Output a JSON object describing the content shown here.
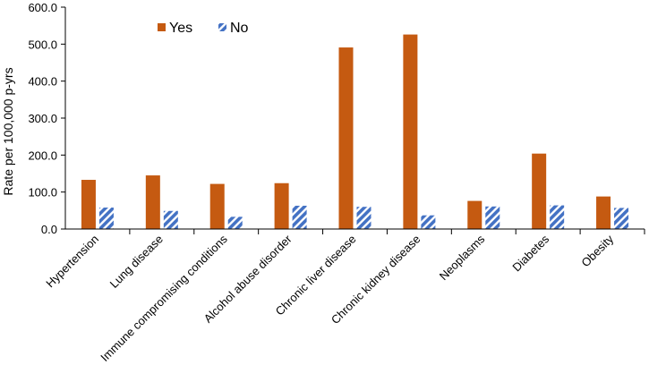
{
  "chart_data": {
    "type": "bar",
    "title": "",
    "xlabel": "",
    "ylabel": "Rate per 100,000 p-yrs",
    "ylim": [
      0,
      600
    ],
    "ytick_labels": [
      "0.0",
      "100.0",
      "200.0",
      "300.0",
      "400.0",
      "500.0",
      "600.0"
    ],
    "categories": [
      "Hypertension",
      "Lung disease",
      "Immune compromising conditions",
      "Alcohol abuse disorder",
      "Chronic liver disease",
      "Chronic kidney disease",
      "Neoplasms",
      "Diabetes",
      "Obesity"
    ],
    "series": [
      {
        "name": "Yes",
        "values": [
          133,
          145,
          122,
          124,
          491,
          526,
          76,
          204,
          88
        ],
        "color": "#c55a11",
        "pattern": "solid"
      },
      {
        "name": "No",
        "values": [
          58,
          49,
          33,
          63,
          60,
          37,
          61,
          64,
          57
        ],
        "color": "#4472c4",
        "pattern": "diagonal-stripes"
      }
    ],
    "legend_position": "top-left",
    "grid": false
  }
}
